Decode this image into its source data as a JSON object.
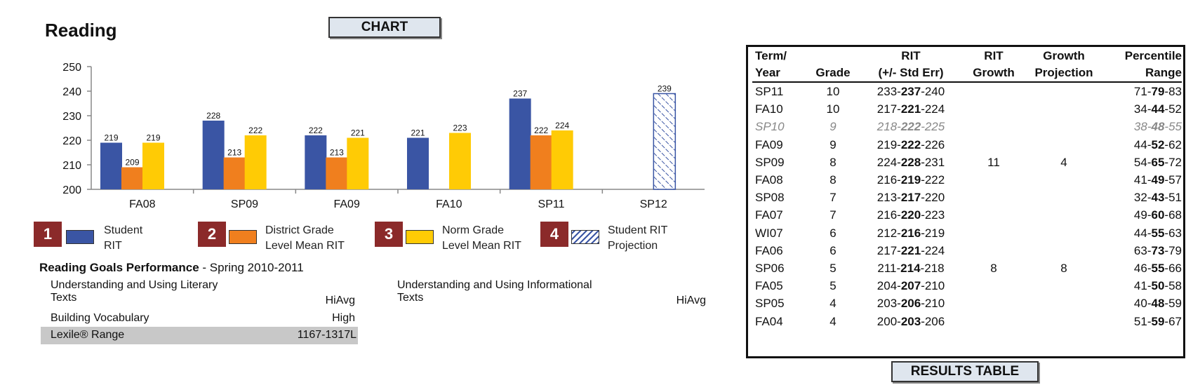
{
  "title": "Reading",
  "chart_tag": "CHART",
  "results_tag": "RESULTS TABLE",
  "chart_data": {
    "type": "bar",
    "categories": [
      "FA08",
      "SP09",
      "FA09",
      "FA10",
      "SP11",
      "SP12"
    ],
    "ylim": [
      200,
      250
    ],
    "yticks": [
      200,
      210,
      220,
      230,
      240,
      250
    ],
    "series": [
      {
        "key": "student",
        "values": [
          219,
          228,
          222,
          221,
          237,
          null
        ],
        "color": "#3a55a4"
      },
      {
        "key": "district",
        "values": [
          209,
          213,
          213,
          null,
          222,
          null
        ],
        "color": "#f07f1e"
      },
      {
        "key": "norm",
        "values": [
          219,
          222,
          221,
          223,
          224,
          null
        ],
        "color": "#ffcb05"
      },
      {
        "key": "projection",
        "values": [
          null,
          null,
          null,
          null,
          null,
          239
        ],
        "color": "#3a55a4",
        "pattern": "hatched"
      }
    ]
  },
  "legend": [
    {
      "num": "1",
      "label_line1": "Student",
      "label_line2": "RIT",
      "color": "#3a55a4"
    },
    {
      "num": "2",
      "label_line1": "District Grade",
      "label_line2": "Level Mean RIT",
      "color": "#f07f1e"
    },
    {
      "num": "3",
      "label_line1": "Norm Grade",
      "label_line2": "Level Mean RIT",
      "color": "#ffcb05"
    },
    {
      "num": "4",
      "label_line1": "Student RIT",
      "label_line2": "Projection",
      "color": "hatched"
    }
  ],
  "goals": {
    "title_bold": "Reading Goals Performance",
    "title_rest": " - Spring 2010-2011",
    "left": [
      {
        "line1": "Understanding and Using Literary",
        "line2": "Texts",
        "value": "HiAvg"
      },
      {
        "line1": "Building Vocabulary",
        "value": "High"
      }
    ],
    "right": [
      {
        "line1": "Understanding and Using Informational",
        "line2": "Texts",
        "value": "HiAvg"
      }
    ],
    "lexile_label": "Lexile® Range",
    "lexile_value": "1167-1317L"
  },
  "table": {
    "headers": [
      {
        "l1": "Term/",
        "l2": "Year"
      },
      {
        "l1": "",
        "l2": "Grade"
      },
      {
        "l1": "RIT",
        "l2": "(+/- Std Err)"
      },
      {
        "l1": "RIT",
        "l2": "Growth"
      },
      {
        "l1": "Growth",
        "l2": "Projection"
      },
      {
        "l1": "Percentile",
        "l2": "Range"
      }
    ],
    "rows": [
      {
        "term": "SP11",
        "grade": "10",
        "rit": [
          "233-",
          "237",
          "-240"
        ],
        "growth": "",
        "proj": "",
        "pct": [
          "71-",
          "79",
          "-83"
        ]
      },
      {
        "term": "FA10",
        "grade": "10",
        "rit": [
          "217-",
          "221",
          "-224"
        ],
        "growth": "",
        "proj": "",
        "pct": [
          "34-",
          "44",
          "-52"
        ]
      },
      {
        "term": "SP10",
        "grade": "9",
        "rit": [
          "218-",
          "222",
          "-225"
        ],
        "growth": "",
        "proj": "",
        "pct": [
          "38-",
          "48",
          "-55"
        ],
        "muted": true
      },
      {
        "term": "FA09",
        "grade": "9",
        "rit": [
          "219-",
          "222",
          "-226"
        ],
        "growth": "",
        "proj": "",
        "pct": [
          "44-",
          "52",
          "-62"
        ]
      },
      {
        "term": "SP09",
        "grade": "8",
        "rit": [
          "224-",
          "228",
          "-231"
        ],
        "growth": "11",
        "proj": "4",
        "pct": [
          "54-",
          "65",
          "-72"
        ]
      },
      {
        "term": "FA08",
        "grade": "8",
        "rit": [
          "216-",
          "219",
          "-222"
        ],
        "growth": "",
        "proj": "",
        "pct": [
          "41-",
          "49",
          "-57"
        ]
      },
      {
        "term": "SP08",
        "grade": "7",
        "rit": [
          "213-",
          "217",
          "-220"
        ],
        "growth": "",
        "proj": "",
        "pct": [
          "32-",
          "43",
          "-51"
        ]
      },
      {
        "term": "FA07",
        "grade": "7",
        "rit": [
          "216-",
          "220",
          "-223"
        ],
        "growth": "",
        "proj": "",
        "pct": [
          "49-",
          "60",
          "-68"
        ]
      },
      {
        "term": "WI07",
        "grade": "6",
        "rit": [
          "212-",
          "216",
          "-219"
        ],
        "growth": "",
        "proj": "",
        "pct": [
          "44-",
          "55",
          "-63"
        ]
      },
      {
        "term": "FA06",
        "grade": "6",
        "rit": [
          "217-",
          "221",
          "-224"
        ],
        "growth": "",
        "proj": "",
        "pct": [
          "63-",
          "73",
          "-79"
        ]
      },
      {
        "term": "SP06",
        "grade": "5",
        "rit": [
          "211-",
          "214",
          "-218"
        ],
        "growth": "8",
        "proj": "8",
        "pct": [
          "46-",
          "55",
          "-66"
        ]
      },
      {
        "term": "FA05",
        "grade": "5",
        "rit": [
          "204-",
          "207",
          "-210"
        ],
        "growth": "",
        "proj": "",
        "pct": [
          "41-",
          "50",
          "-58"
        ]
      },
      {
        "term": "SP05",
        "grade": "4",
        "rit": [
          "203-",
          "206",
          "-210"
        ],
        "growth": "",
        "proj": "",
        "pct": [
          "40-",
          "48",
          "-59"
        ]
      },
      {
        "term": "FA04",
        "grade": "4",
        "rit": [
          "200-",
          "203",
          "-206"
        ],
        "growth": "",
        "proj": "",
        "pct": [
          "51-",
          "59",
          "-67"
        ]
      }
    ]
  }
}
